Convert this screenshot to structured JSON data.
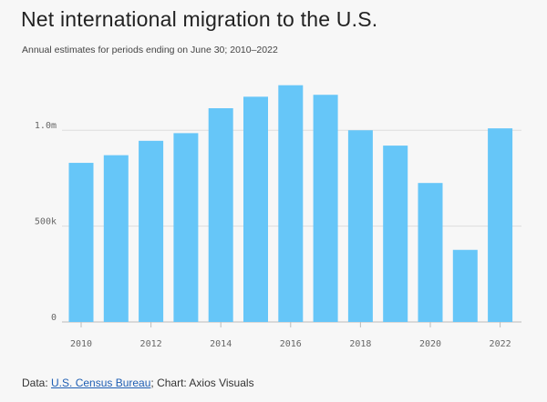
{
  "header": {
    "title": "Net international migration to the U.S.",
    "subtitle": "Annual estimates for periods ending on June 30; 2010–2022"
  },
  "footer": {
    "data_prefix": "Data: ",
    "source_link": "U.S. Census Bureau",
    "chart_credit": "; Chart: Axios Visuals"
  },
  "colors": {
    "bar": "#66c6f8",
    "grid": "#dddddd",
    "background": "#f7f7f7"
  },
  "chart_data": {
    "type": "bar",
    "title": "Net international migration to the U.S.",
    "subtitle": "Annual estimates for periods ending on June 30; 2010–2022",
    "categories": [
      "2010",
      "2011",
      "2012",
      "2013",
      "2014",
      "2015",
      "2016",
      "2017",
      "2018",
      "2019",
      "2020",
      "2021",
      "2022"
    ],
    "values": [
      830000,
      870000,
      945000,
      985000,
      1115000,
      1175000,
      1235000,
      1185000,
      1000000,
      920000,
      725000,
      376000,
      1010000
    ],
    "xtick_labels": [
      "2010",
      "2012",
      "2014",
      "2016",
      "2018",
      "2020",
      "2022"
    ],
    "ytick_values": [
      0,
      500000,
      1000000
    ],
    "ytick_labels": [
      "0",
      "500k",
      "1.0m"
    ],
    "ylim": [
      0,
      1300000
    ],
    "xlabel": "",
    "ylabel": "",
    "grid": true
  }
}
